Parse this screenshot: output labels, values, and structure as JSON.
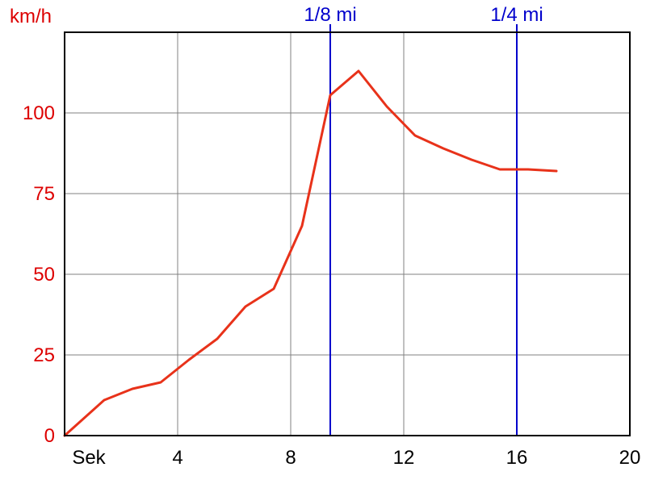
{
  "chart_data": {
    "type": "line",
    "xlabel": "Sek",
    "ylabel": "km/h",
    "xlim": [
      0,
      20
    ],
    "ylim": [
      0,
      125
    ],
    "x_ticks": [
      4,
      8,
      12,
      16,
      20
    ],
    "y_ticks": [
      0,
      25,
      50,
      75,
      100
    ],
    "grid": true,
    "colors": {
      "series": "#e8321a",
      "y_axis_text": "#dd0000",
      "markers": "#0000cc",
      "grid": "#808080",
      "frame": "#000000"
    },
    "series": [
      {
        "x": [
          0,
          1.4,
          2.4,
          3.4,
          4.4,
          5.4,
          6.4,
          7.4,
          8.4,
          9.4,
          10.4,
          11.4,
          12.4,
          13.4,
          14.4,
          15.4,
          16.4,
          17.4
        ],
        "y": [
          0,
          11,
          14.5,
          16.5,
          23.5,
          30,
          40,
          45.5,
          65,
          105.5,
          113,
          102,
          93,
          89,
          85.5,
          82.5,
          82.5,
          82
        ]
      }
    ],
    "markers": [
      {
        "label": "1/8 mi",
        "x": 9.4
      },
      {
        "label": "1/4 mi",
        "x": 16
      }
    ]
  }
}
